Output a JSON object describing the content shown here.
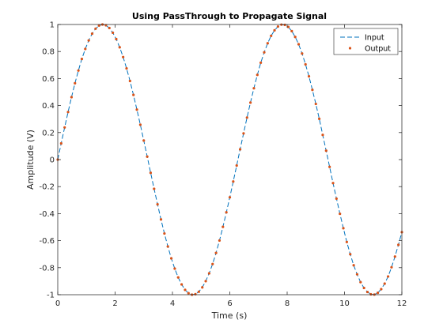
{
  "chart_data": {
    "type": "line",
    "title": "Using PassThrough to Propagate Signal",
    "xlabel": "Time (s)",
    "ylabel": "Amplitude (V)",
    "xlim": [
      0,
      12
    ],
    "ylim": [
      -1,
      1
    ],
    "xticks": [
      0,
      2,
      4,
      6,
      8,
      10,
      12
    ],
    "xtick_labels": [
      "0",
      "2",
      "4",
      "6",
      "8",
      "10",
      "12"
    ],
    "yticks": [
      -1,
      -0.8,
      -0.6,
      -0.4,
      -0.2,
      0,
      0.2,
      0.4,
      0.6,
      0.8,
      1
    ],
    "ytick_labels": [
      "-1",
      "-0.8",
      "-0.6",
      "-0.4",
      "-0.2",
      "0",
      "0.2",
      "0.4",
      "0.6",
      "0.8",
      "1"
    ],
    "grid": false,
    "legend_position": "top-right",
    "x": [
      0,
      0.12,
      0.24,
      0.36,
      0.48,
      0.6,
      0.72,
      0.84,
      0.96,
      1.08,
      1.2,
      1.32,
      1.44,
      1.56,
      1.68,
      1.8,
      1.92,
      2.04,
      2.16,
      2.28,
      2.4,
      2.52,
      2.64,
      2.76,
      2.88,
      3,
      3.12,
      3.24,
      3.36,
      3.48,
      3.6,
      3.72,
      3.84,
      3.96,
      4.08,
      4.2,
      4.32,
      4.44,
      4.56,
      4.68,
      4.8,
      4.92,
      5.04,
      5.16,
      5.28,
      5.4,
      5.52,
      5.64,
      5.76,
      5.88,
      6,
      6.12,
      6.24,
      6.36,
      6.48,
      6.6,
      6.72,
      6.84,
      6.96,
      7.08,
      7.2,
      7.32,
      7.44,
      7.56,
      7.68,
      7.8,
      7.92,
      8.04,
      8.16,
      8.28,
      8.4,
      8.52,
      8.64,
      8.76,
      8.88,
      9,
      9.12,
      9.24,
      9.36,
      9.48,
      9.6,
      9.72,
      9.84,
      9.96,
      10.08,
      10.2,
      10.32,
      10.44,
      10.56,
      10.68,
      10.8,
      10.92,
      11.04,
      11.16,
      11.28,
      11.4,
      11.52,
      11.64,
      11.76,
      11.88,
      12
    ],
    "series": [
      {
        "name": "Input",
        "style": "dashed-line",
        "color": "#0072bd",
        "values": [
          0,
          0.12,
          0.238,
          0.352,
          0.462,
          0.565,
          0.659,
          0.745,
          0.819,
          0.882,
          0.932,
          0.969,
          0.992,
          1,
          0.994,
          0.974,
          0.939,
          0.892,
          0.831,
          0.759,
          0.675,
          0.582,
          0.479,
          0.37,
          0.258,
          0.141,
          0.022,
          -0.098,
          -0.216,
          -0.331,
          -0.443,
          -0.547,
          -0.643,
          -0.731,
          -0.807,
          -0.872,
          -0.924,
          -0.964,
          -0.989,
          -1,
          -0.996,
          -0.978,
          -0.946,
          -0.9,
          -0.842,
          -0.773,
          -0.691,
          -0.599,
          -0.498,
          -0.39,
          -0.279,
          -0.162,
          -0.044,
          0.076,
          0.194,
          0.311,
          0.422,
          0.528,
          0.627,
          0.717,
          0.794,
          0.861,
          0.916,
          0.957,
          0.985,
          0.999,
          0.997,
          0.982,
          0.951,
          0.908,
          0.854,
          0.785,
          0.705,
          0.616,
          0.516,
          0.412,
          0.302,
          0.183,
          0.066,
          -0.054,
          -0.174,
          -0.289,
          -0.401,
          -0.508,
          -0.61,
          -0.7,
          -0.782,
          -0.849,
          -0.907,
          -0.95,
          -0.98,
          -0.997,
          -0.999,
          -0.986,
          -0.959,
          -0.918,
          -0.865,
          -0.797,
          -0.718,
          -0.631,
          -0.537
        ]
      },
      {
        "name": "Output",
        "style": "dot-markers",
        "color": "#d95319",
        "values": [
          0,
          0.12,
          0.238,
          0.352,
          0.462,
          0.565,
          0.659,
          0.745,
          0.819,
          0.882,
          0.932,
          0.969,
          0.992,
          1,
          0.994,
          0.974,
          0.939,
          0.892,
          0.831,
          0.759,
          0.675,
          0.582,
          0.479,
          0.37,
          0.258,
          0.141,
          0.022,
          -0.098,
          -0.216,
          -0.331,
          -0.443,
          -0.547,
          -0.643,
          -0.731,
          -0.807,
          -0.872,
          -0.924,
          -0.964,
          -0.989,
          -1,
          -0.996,
          -0.978,
          -0.946,
          -0.9,
          -0.842,
          -0.773,
          -0.691,
          -0.599,
          -0.498,
          -0.39,
          -0.279,
          -0.162,
          -0.044,
          0.076,
          0.194,
          0.311,
          0.422,
          0.528,
          0.627,
          0.717,
          0.794,
          0.861,
          0.916,
          0.957,
          0.985,
          0.999,
          0.997,
          0.982,
          0.951,
          0.908,
          0.854,
          0.785,
          0.705,
          0.616,
          0.516,
          0.412,
          0.302,
          0.183,
          0.066,
          -0.054,
          -0.174,
          -0.289,
          -0.401,
          -0.508,
          -0.61,
          -0.7,
          -0.782,
          -0.849,
          -0.907,
          -0.95,
          -0.98,
          -0.997,
          -0.999,
          -0.986,
          -0.959,
          -0.918,
          -0.865,
          -0.797,
          -0.718,
          -0.631,
          -0.537
        ]
      }
    ]
  }
}
